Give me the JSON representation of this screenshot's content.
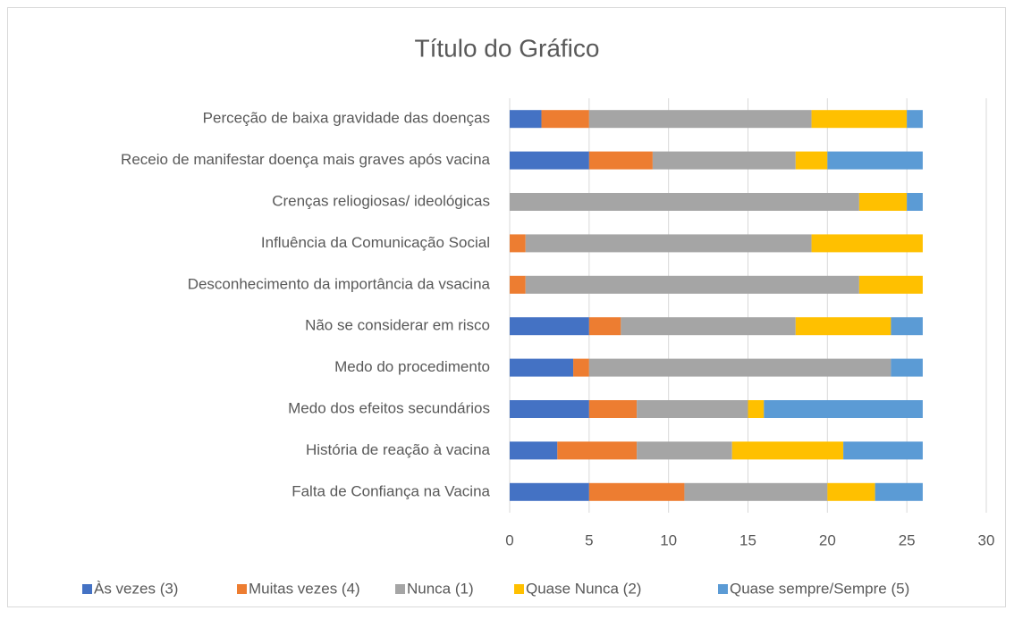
{
  "chart_data": {
    "type": "stacked-bar-horizontal",
    "title": "Título do Gráfico",
    "categories": [
      "Falta de Confiança na Vacina",
      "História de reação à vacina",
      "Medo dos efeitos secundários",
      "Medo do procedimento",
      "Não se considerar em risco",
      "Desconhecimento da importância da vsacina",
      "Influência da Comunicação Social",
      "Crenças reliogiosas/ ideológicas",
      "Receio de manifestar doença mais graves após vacina",
      "Perceção de baixa gravidade das doenças"
    ],
    "series": [
      {
        "name": "Às vezes (3)",
        "color": "#4472c4",
        "values": [
          5,
          3,
          5,
          4,
          5,
          0,
          0,
          0,
          5,
          2
        ]
      },
      {
        "name": "Muitas vezes (4)",
        "color": "#ed7d31",
        "values": [
          6,
          5,
          3,
          1,
          2,
          1,
          1,
          0,
          4,
          3
        ]
      },
      {
        "name": "Nunca (1)",
        "color": "#a5a5a5",
        "values": [
          9,
          6,
          7,
          19,
          11,
          21,
          18,
          22,
          9,
          14
        ]
      },
      {
        "name": "Quase Nunca (2)",
        "color": "#ffc000",
        "values": [
          3,
          7,
          1,
          0,
          6,
          4,
          7,
          3,
          2,
          6
        ]
      },
      {
        "name": "Quase sempre/Sempre (5)",
        "color": "#5b9bd5",
        "values": [
          3,
          5,
          10,
          2,
          2,
          0,
          0,
          1,
          6,
          1
        ]
      }
    ],
    "xlim": [
      0,
      30
    ],
    "xticks": [
      0,
      5,
      10,
      15,
      20,
      25,
      30
    ],
    "grid": true,
    "legend": "bottom"
  }
}
